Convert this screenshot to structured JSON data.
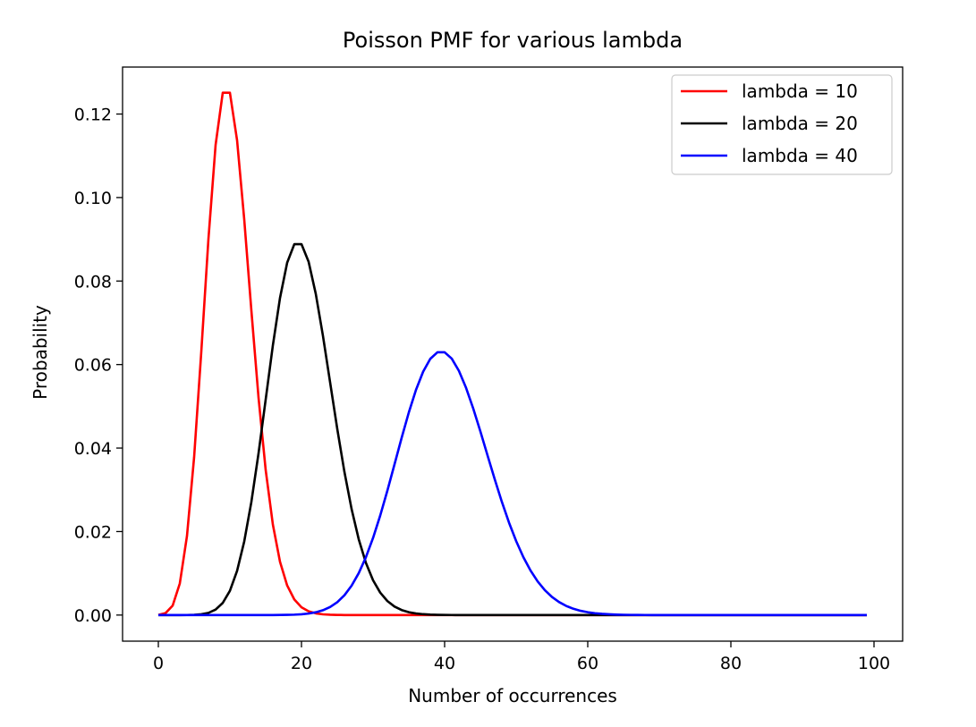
{
  "chart_data": {
    "type": "line",
    "title": "Poisson PMF for various lambda",
    "xlabel": "Number of occurrences",
    "ylabel": "Probability",
    "xlim": [
      -5,
      104
    ],
    "ylim": [
      -0.00625,
      0.13125
    ],
    "x_ticks": [
      0,
      20,
      40,
      60,
      80,
      100
    ],
    "x_tick_labels": [
      "0",
      "20",
      "40",
      "60",
      "80",
      "100"
    ],
    "y_ticks": [
      0,
      0.02,
      0.04,
      0.06,
      0.08,
      0.1,
      0.12
    ],
    "y_tick_labels": [
      "0.00",
      "0.02",
      "0.04",
      "0.06",
      "0.08",
      "0.10",
      "0.12"
    ],
    "x_range": [
      0,
      99
    ],
    "grid": false,
    "legend_position": "top-right",
    "series": [
      {
        "name": "lambda = 10",
        "lambda": 10,
        "color": "#ff0000"
      },
      {
        "name": "lambda = 20",
        "lambda": 20,
        "color": "#000000"
      },
      {
        "name": "lambda = 40",
        "lambda": 40,
        "color": "#0000ff"
      }
    ]
  }
}
